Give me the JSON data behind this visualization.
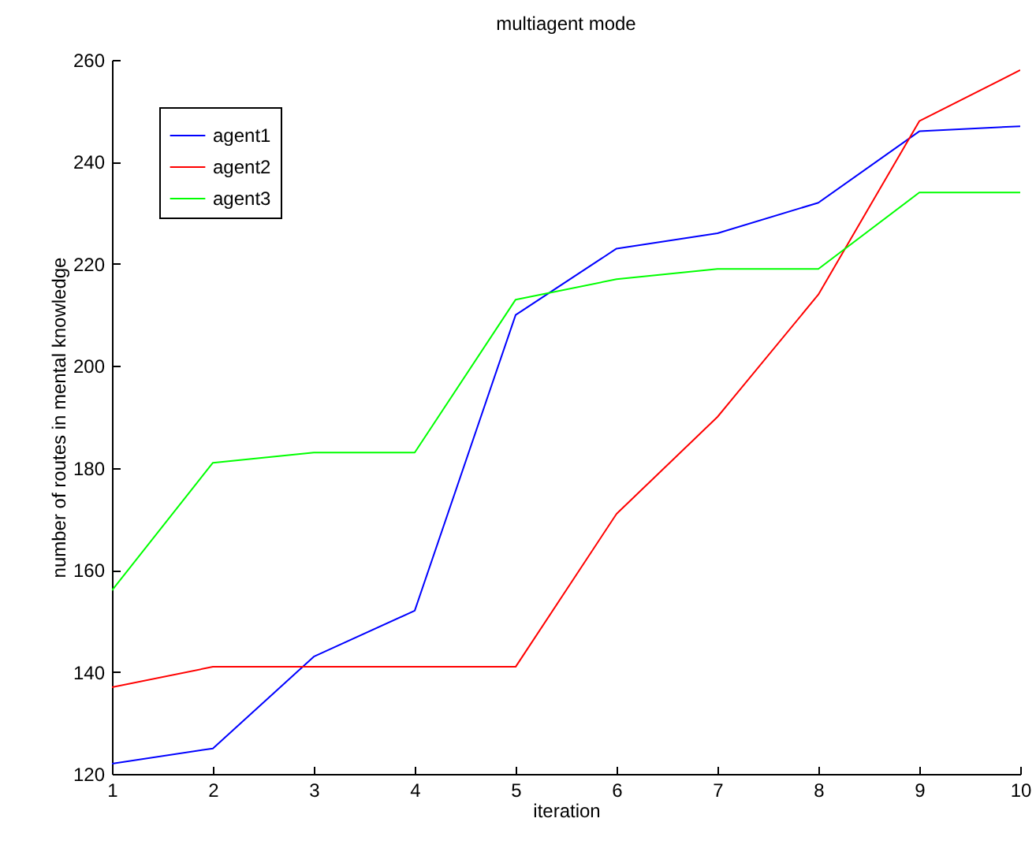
{
  "chart_data": {
    "type": "line",
    "title": "multiagent mode",
    "xlabel": "iteration",
    "ylabel": "number of routes in mental knowledge",
    "x": [
      1,
      2,
      3,
      4,
      5,
      6,
      7,
      8,
      9,
      10
    ],
    "series": [
      {
        "name": "agent1",
        "color": "#0000ff",
        "values": [
          122,
          125,
          143,
          152,
          210,
          223,
          226,
          232,
          246,
          247
        ]
      },
      {
        "name": "agent2",
        "color": "#ff0000",
        "values": [
          137,
          141,
          141,
          141,
          141,
          171,
          190,
          214,
          248,
          258
        ]
      },
      {
        "name": "agent3",
        "color": "#00ff00",
        "values": [
          156,
          181,
          183,
          183,
          213,
          217,
          219,
          219,
          234,
          234
        ]
      }
    ],
    "xlim": [
      1,
      10
    ],
    "xticks": [
      1,
      2,
      3,
      4,
      5,
      6,
      7,
      8,
      9,
      10
    ],
    "ylim": [
      120,
      260
    ],
    "yticks": [
      120,
      140,
      160,
      180,
      200,
      220,
      240,
      260
    ],
    "legend": "top left",
    "grid": false,
    "marker": "none",
    "line_style": "solid"
  }
}
